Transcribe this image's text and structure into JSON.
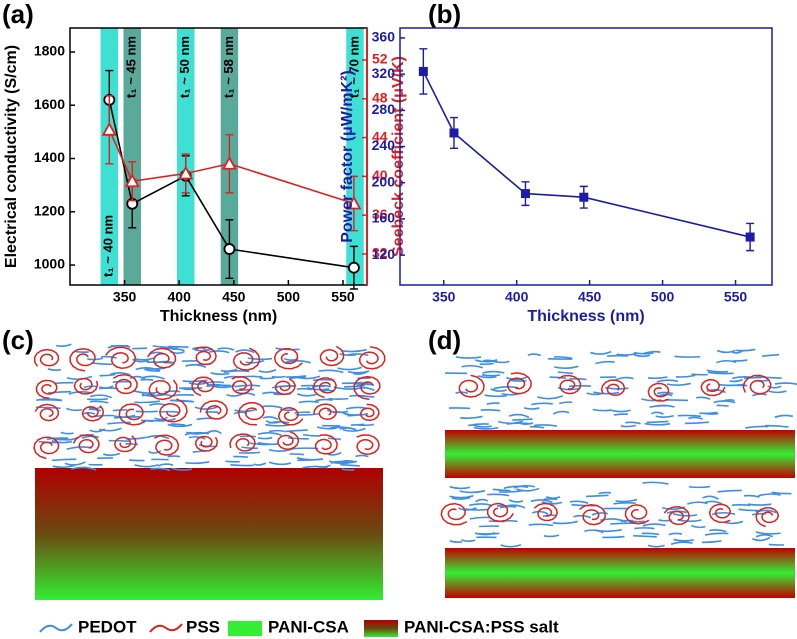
{
  "chart_data": [
    {
      "type": "line",
      "xlabel": "Thickness (nm)",
      "ylabel": "Electrical conductivity (S/cm)",
      "y2label": "Seebeck coefficient (μV/K)",
      "x": [
        336,
        357,
        406,
        446,
        560
      ],
      "xlim": [
        300,
        572
      ],
      "xticks": [
        350,
        400,
        450,
        500,
        550
      ],
      "ylim": [
        925,
        1890
      ],
      "yticks": [
        1000,
        1200,
        1400,
        1600,
        1800
      ],
      "y2lim": [
        28.8,
        55.3
      ],
      "y2ticks": [
        32,
        36,
        40,
        44,
        48,
        52
      ],
      "axis_color": "#000000",
      "y2_axis_color": "#e0201e",
      "series": [
        {
          "color": "#000000",
          "marker": "circle-open",
          "values": [
            1620,
            1230,
            1335,
            1060,
            990
          ],
          "errors": [
            110,
            90,
            75,
            110,
            80
          ]
        },
        {
          "color": "#e0201e",
          "marker": "triangle-open",
          "axis": "y2",
          "values": [
            44.8,
            39.5,
            40.3,
            41.3,
            37.2
          ],
          "errors": [
            3.5,
            2,
            2,
            3,
            2.8
          ]
        }
      ],
      "bands": [
        {
          "range": [
            328,
            344
          ],
          "color": "#3fe0d4",
          "label": "t₁ ~ 40 nm"
        },
        {
          "range": [
            349,
            365
          ],
          "color": "#5aaa9c",
          "label": "t₁ ~ 45 nm"
        },
        {
          "range": [
            398,
            414
          ],
          "color": "#3fe0d4",
          "label": "t₁ ~ 50 nm"
        },
        {
          "range": [
            438,
            454
          ],
          "color": "#5aaa9c",
          "label": "t₁ ~ 58 nm"
        },
        {
          "range": [
            553,
            569
          ],
          "color": "#3fe0d4",
          "label": "t₁ ~ 70 nm"
        }
      ]
    },
    {
      "type": "line",
      "xlabel": "Thickness (nm)",
      "ylabel": "Power factor (μW/mK²)",
      "x": [
        336,
        357,
        406,
        446,
        560
      ],
      "xlim": [
        320,
        575
      ],
      "xticks": [
        350,
        400,
        450,
        500,
        550
      ],
      "ylim": [
        87,
        371
      ],
      "yticks": [
        120,
        160,
        200,
        240,
        280,
        320,
        360
      ],
      "axis_color": "#1c1ca8",
      "series": [
        {
          "color": "#1c1ca8",
          "marker": "square",
          "values": [
            323,
            255,
            188,
            184,
            140
          ],
          "errors": [
            25,
            17,
            13,
            12,
            15
          ]
        }
      ]
    }
  ],
  "panel_labels": [
    "(a)",
    "(b)",
    "(c)",
    "(d)"
  ],
  "legend": {
    "items": [
      "PEDOT",
      "PSS",
      "PANI-CSA",
      "PANI-CSA:PSS salt"
    ]
  }
}
